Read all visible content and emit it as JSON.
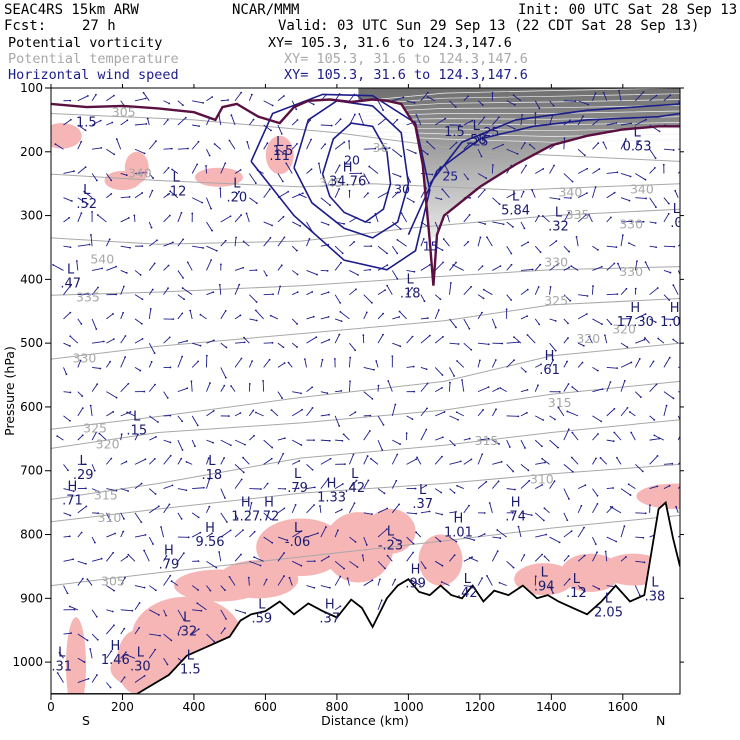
{
  "header": {
    "model": "SEAC4RS 15km ARW",
    "forecast_label": "Fcst:",
    "forecast_value": "27 h",
    "center": "NCAR/MMM",
    "init": "Init: 00 UTC Sat 28 Sep 13",
    "valid": "Valid: 03 UTC Sun 29 Sep 13 (22 CDT Sat 28 Sep 13)"
  },
  "legend": [
    {
      "name": "Potential vorticity",
      "xy": "XY= 105.3, 31.6 to 124.3,147.6",
      "color": "#000000"
    },
    {
      "name": "Potential temperature",
      "xy": "XY= 105.3, 31.6 to 124.3,147.6",
      "color": "#a8a8a8"
    },
    {
      "name": "Horizontal wind speed",
      "xy": "XY= 105.3, 31.6 to 124.3,147.6",
      "color": "#1c1c8a"
    }
  ],
  "colors": {
    "wind": "#1c1c8a",
    "theta": "#a8a8a8",
    "pv_fill": "#f6b6b6",
    "pv_line": "#5a1040",
    "terrain": "#000000"
  },
  "chart_data": {
    "type": "cross-section",
    "xlabel": "Distance (km)",
    "ylabel": "Pressure (hPa)",
    "xlim": [
      0,
      1760
    ],
    "ylim": [
      1050,
      100
    ],
    "x_ticks": [
      "0",
      "200",
      "400",
      "600",
      "800",
      "1000",
      "1200",
      "1400",
      "1600"
    ],
    "y_ticks": [
      "100",
      "200",
      "300",
      "400",
      "500",
      "600",
      "700",
      "800",
      "900",
      "1000"
    ],
    "endpoints": {
      "left": "S",
      "right": "N"
    },
    "theta_contour_labels": [
      {
        "text": "305",
        "x": 170,
        "p": 145
      },
      {
        "text": "340",
        "x": 215,
        "p": 240
      },
      {
        "text": "540",
        "x": 110,
        "p": 375
      },
      {
        "text": "335",
        "x": 70,
        "p": 435
      },
      {
        "text": "330",
        "x": 60,
        "p": 530
      },
      {
        "text": "325",
        "x": 90,
        "p": 640
      },
      {
        "text": "320",
        "x": 125,
        "p": 665
      },
      {
        "text": "315",
        "x": 120,
        "p": 745
      },
      {
        "text": "310",
        "x": 130,
        "p": 780
      },
      {
        "text": "305",
        "x": 140,
        "p": 880
      },
      {
        "text": "340",
        "x": 1420,
        "p": 270
      },
      {
        "text": "340",
        "x": 1620,
        "p": 265
      },
      {
        "text": "335",
        "x": 1440,
        "p": 305
      },
      {
        "text": "330",
        "x": 1590,
        "p": 320
      },
      {
        "text": "330",
        "x": 1380,
        "p": 380
      },
      {
        "text": "330",
        "x": 1590,
        "p": 395
      },
      {
        "text": "325",
        "x": 1380,
        "p": 440
      },
      {
        "text": "320",
        "x": 1570,
        "p": 485
      },
      {
        "text": "320",
        "x": 1470,
        "p": 500
      },
      {
        "text": "315",
        "x": 1390,
        "p": 600
      },
      {
        "text": "315",
        "x": 1185,
        "p": 660
      },
      {
        "text": "310",
        "x": 1340,
        "p": 720
      },
      {
        "text": "345",
        "x": 750,
        "p": 255
      },
      {
        "text": "36",
        "x": 900,
        "p": 200
      }
    ],
    "wind_speed_labels": [
      {
        "text": "25",
        "x": 1180,
        "p": 190
      },
      {
        "text": "25",
        "x": 1095,
        "p": 245
      },
      {
        "text": "30",
        "x": 960,
        "p": 265
      },
      {
        "text": "15",
        "x": 1040,
        "p": 355
      },
      {
        "text": "20",
        "x": 820,
        "p": 220
      },
      {
        "text": "25",
        "x": 1210,
        "p": 175
      }
    ],
    "pv_labels": [
      {
        "text": "1.5",
        "x": 70,
        "p": 160
      },
      {
        "text": "1.5",
        "x": 620,
        "p": 205
      },
      {
        "text": "1.5",
        "x": 1100,
        "p": 175
      }
    ],
    "extrema": [
      {
        "type": "H",
        "value": "34.76",
        "x": 830,
        "p": 250
      },
      {
        "type": "L",
        "value": ".52",
        "x": 100,
        "p": 285
      },
      {
        "type": "L",
        "value": ".12",
        "x": 350,
        "p": 265
      },
      {
        "type": "L",
        "value": ".20",
        "x": 520,
        "p": 275
      },
      {
        "type": "L",
        "value": ".11",
        "x": 640,
        "p": 210
      },
      {
        "type": "L",
        "value": ".47",
        "x": 55,
        "p": 410
      },
      {
        "type": "L",
        "value": ".18",
        "x": 1005,
        "p": 425
      },
      {
        "type": "L",
        "value": ".58",
        "x": 1190,
        "p": 185
      },
      {
        "type": "L",
        "value": "5.84",
        "x": 1300,
        "p": 295
      },
      {
        "type": "L",
        "value": ".32",
        "x": 1420,
        "p": 320
      },
      {
        "type": "L",
        "value": "0.53",
        "x": 1640,
        "p": 195
      },
      {
        "type": "L",
        "value": ".0",
        "x": 1750,
        "p": 315
      },
      {
        "type": "H",
        "value": "17.30",
        "x": 1635,
        "p": 470
      },
      {
        "type": "H",
        "value": "1.07",
        "x": 1745,
        "p": 470
      },
      {
        "type": "H",
        "value": ".61",
        "x": 1395,
        "p": 545
      },
      {
        "type": "L",
        "value": ".15",
        "x": 240,
        "p": 640
      },
      {
        "type": "L",
        "value": ".29",
        "x": 90,
        "p": 710
      },
      {
        "type": "H",
        "value": ".71",
        "x": 60,
        "p": 750
      },
      {
        "type": "L",
        "value": ".18",
        "x": 450,
        "p": 710
      },
      {
        "type": "L",
        "value": ".79",
        "x": 690,
        "p": 730
      },
      {
        "type": "H",
        "value": "1.33",
        "x": 785,
        "p": 745
      },
      {
        "type": "L",
        "value": ".42",
        "x": 850,
        "p": 730
      },
      {
        "type": "L",
        "value": ".37",
        "x": 1040,
        "p": 755
      },
      {
        "type": "H",
        "value": "1.27",
        "x": 545,
        "p": 775
      },
      {
        "type": "H",
        "value": ".72",
        "x": 610,
        "p": 775
      },
      {
        "type": "H",
        "value": ".74",
        "x": 1300,
        "p": 775
      },
      {
        "type": "H",
        "value": "1.01",
        "x": 1140,
        "p": 800
      },
      {
        "type": "H",
        "value": "9.56",
        "x": 445,
        "p": 815
      },
      {
        "type": "L",
        "value": "-.06",
        "x": 690,
        "p": 815
      },
      {
        "type": "L",
        "value": "-.23",
        "x": 950,
        "p": 820
      },
      {
        "type": "H",
        "value": ".79",
        "x": 330,
        "p": 850
      },
      {
        "type": "H",
        "value": ".99",
        "x": 1020,
        "p": 880
      },
      {
        "type": "L",
        "value": ".42",
        "x": 1165,
        "p": 895
      },
      {
        "type": "L",
        "value": ".94",
        "x": 1380,
        "p": 885
      },
      {
        "type": "L",
        "value": ".12",
        "x": 1470,
        "p": 895
      },
      {
        "type": "L",
        "value": ".38",
        "x": 1690,
        "p": 900
      },
      {
        "type": "L",
        "value": ".59",
        "x": 590,
        "p": 935
      },
      {
        "type": "H",
        "value": ".37",
        "x": 780,
        "p": 935
      },
      {
        "type": "L",
        "value": "2.05",
        "x": 1560,
        "p": 925
      },
      {
        "type": "L",
        "value": ".32",
        "x": 380,
        "p": 955
      },
      {
        "type": "H",
        "value": "1.46",
        "x": 180,
        "p": 1000
      },
      {
        "type": "L",
        "value": ".30",
        "x": 250,
        "p": 1010
      },
      {
        "type": "L",
        "value": "1.5",
        "x": 390,
        "p": 1015
      },
      {
        "type": "L",
        "value": ".31",
        "x": 30,
        "p": 1010
      }
    ],
    "terrain_surface": {
      "x": [
        0,
        240,
        330,
        380,
        440,
        500,
        530,
        560,
        600,
        640,
        680,
        720,
        760,
        800,
        840,
        870,
        900,
        940,
        970,
        1000,
        1030,
        1060,
        1090,
        1120,
        1150,
        1180,
        1210,
        1240,
        1280,
        1320,
        1360,
        1390,
        1420,
        1460,
        1500,
        1540,
        1580,
        1620,
        1660,
        1700,
        1720,
        1740,
        1760
      ],
      "p": [
        1050,
        1050,
        1020,
        990,
        975,
        960,
        935,
        925,
        920,
        905,
        925,
        908,
        920,
        930,
        902,
        915,
        945,
        900,
        880,
        870,
        890,
        895,
        880,
        895,
        900,
        880,
        905,
        888,
        895,
        880,
        900,
        895,
        905,
        915,
        925,
        905,
        880,
        905,
        895,
        760,
        750,
        805,
        850
      ]
    },
    "pv_tropopause": {
      "x": [
        0,
        100,
        200,
        300,
        400,
        460,
        480,
        520,
        580,
        640,
        680,
        720,
        780,
        840,
        900,
        940,
        980,
        1020,
        1040,
        1060,
        1070,
        1080,
        1100,
        1200,
        1300,
        1400,
        1500,
        1600,
        1700,
        1760
      ],
      "p": [
        125,
        130,
        128,
        132,
        138,
        150,
        130,
        125,
        145,
        155,
        130,
        120,
        118,
        122,
        118,
        120,
        125,
        160,
        220,
        340,
        410,
        330,
        300,
        255,
        220,
        190,
        175,
        165,
        160,
        160
      ]
    },
    "wind_isotach": [
      {
        "value": 30,
        "x": [
          760,
          790,
          840,
          900,
          940,
          950,
          930,
          880,
          820,
          780,
          760
        ],
        "p": [
          235,
          180,
          155,
          160,
          200,
          250,
          290,
          310,
          295,
          270,
          235
        ]
      },
      {
        "value": 25,
        "x": [
          680,
          720,
          800,
          900,
          980,
          1000,
          970,
          900,
          820,
          730,
          680
        ],
        "p": [
          225,
          150,
          120,
          128,
          170,
          250,
          310,
          335,
          320,
          280,
          225
        ]
      },
      {
        "value": 20,
        "x": [
          560,
          620,
          760,
          900,
          1020,
          1060,
          1020,
          940,
          820,
          680,
          560
        ],
        "p": [
          215,
          140,
          110,
          112,
          155,
          260,
          355,
          385,
          370,
          300,
          215
        ]
      }
    ]
  }
}
